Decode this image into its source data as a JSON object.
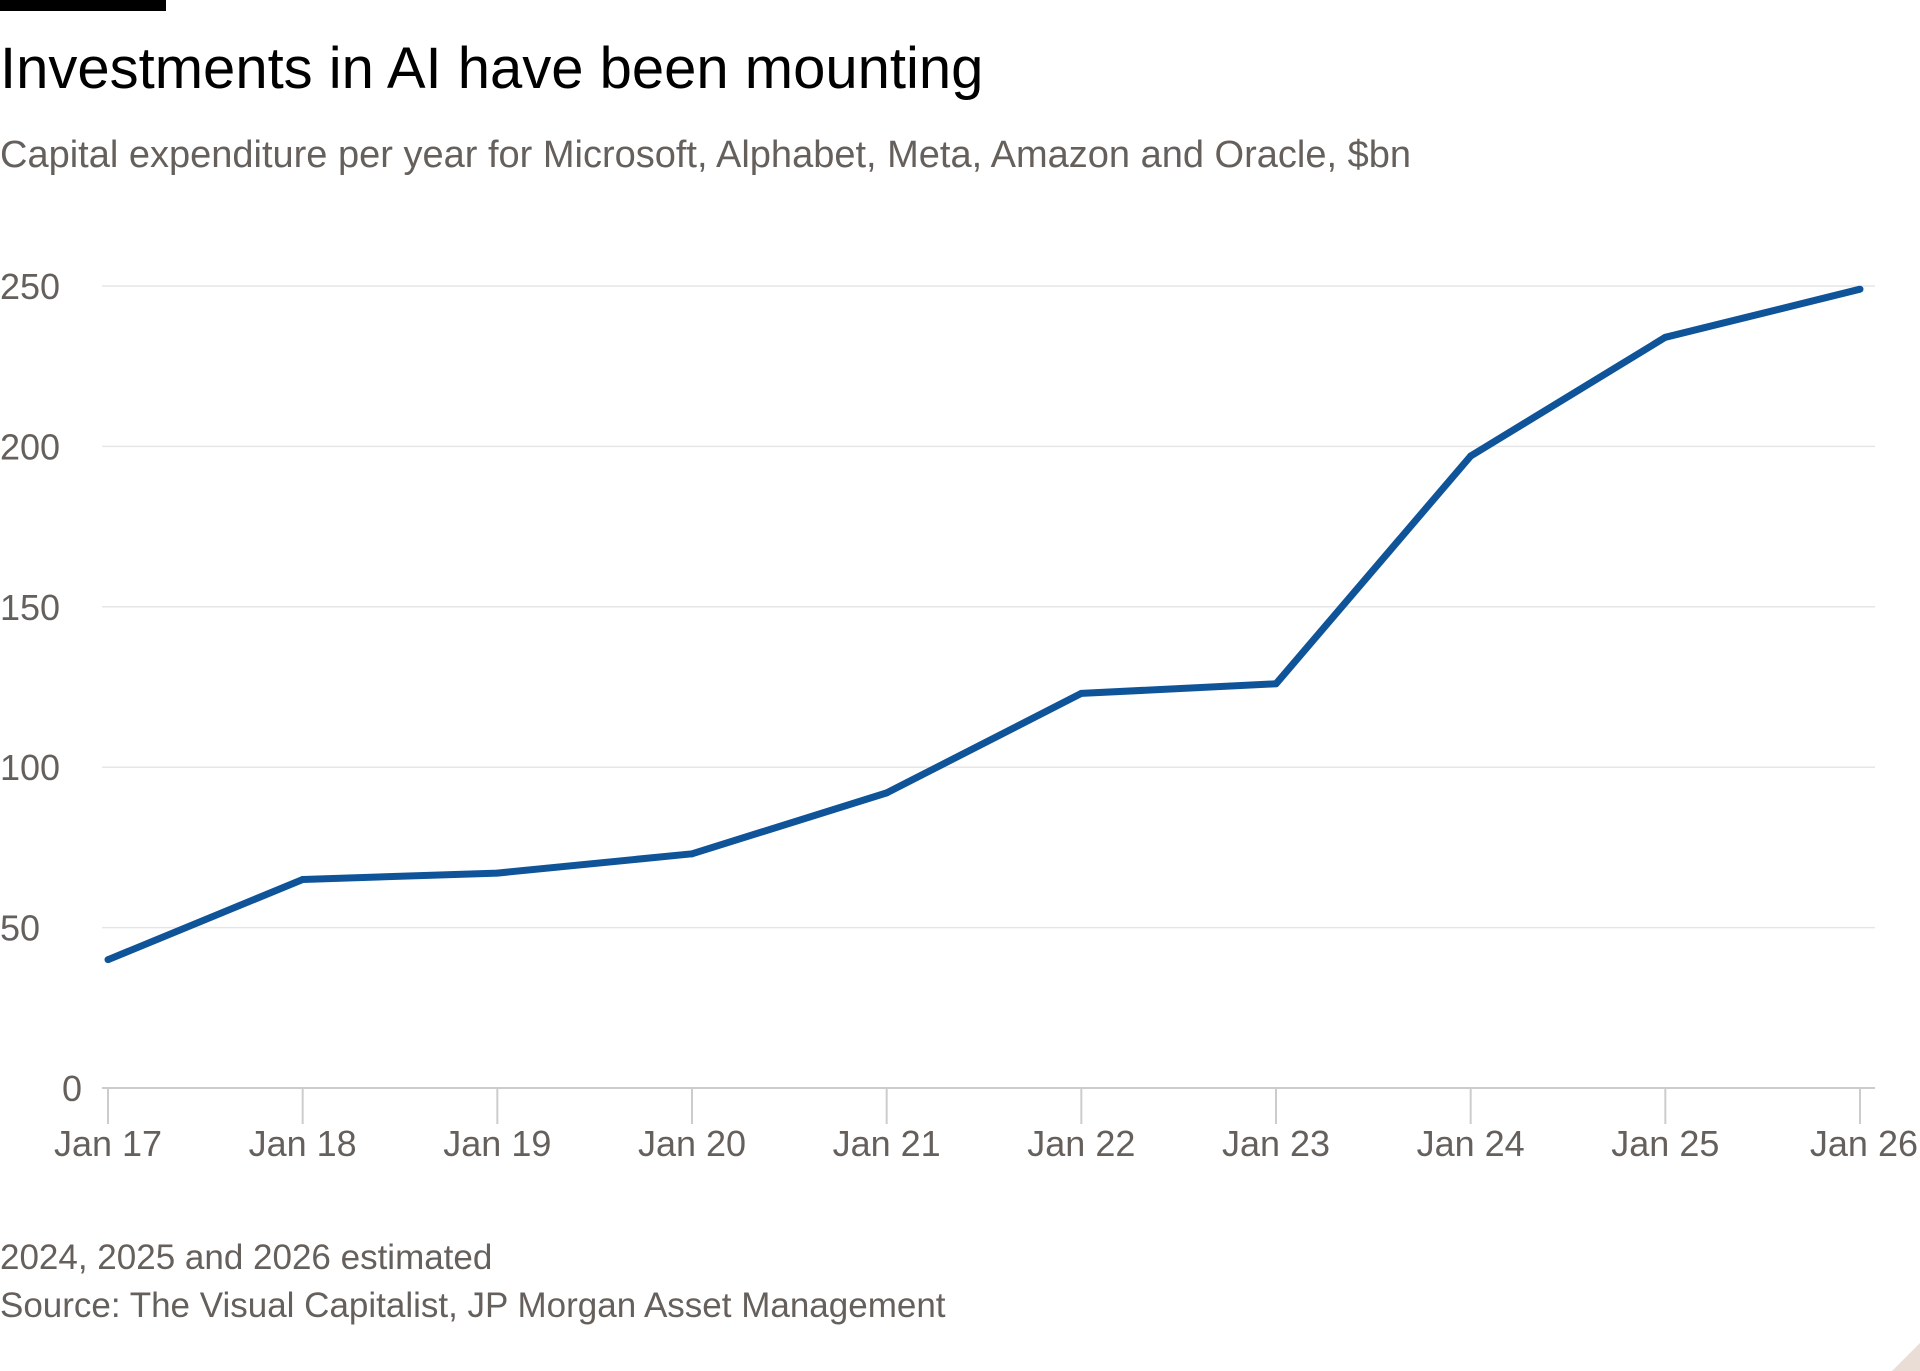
{
  "header": {
    "title": "Investments in AI have been mounting",
    "subtitle": "Capital expenditure per year for Microsoft, Alphabet, Meta, Amazon and Oracle, $bn"
  },
  "footer": {
    "note": "2024, 2025 and 2026 estimated",
    "source": "Source: The Visual Capitalist, JP Morgan Asset Management"
  },
  "colors": {
    "line": "#0f5499",
    "grid": "#e6e6e6",
    "axis": "#cccccc",
    "text_muted": "#66605c",
    "title": "#000000",
    "accent_bar": "#000000"
  },
  "chart_data": {
    "type": "line",
    "title": "Investments in AI have been mounting",
    "subtitle": "Capital expenditure per year for Microsoft, Alphabet, Meta, Amazon and Oracle, $bn",
    "x": [
      "Jan 17",
      "Jan 18",
      "Jan 19",
      "Jan 20",
      "Jan 21",
      "Jan 22",
      "Jan 23",
      "Jan 24",
      "Jan 25",
      "Jan 26"
    ],
    "series": [
      {
        "values": [
          40,
          65,
          67,
          73,
          92,
          123,
          126,
          197,
          234,
          249
        ]
      }
    ],
    "ylim": [
      0,
      250
    ],
    "yticks": [
      0,
      50,
      100,
      150,
      200,
      250
    ],
    "ytick_labels": [
      "0",
      "50",
      "100",
      "150",
      "200",
      "250"
    ],
    "xtick_labels": [
      "Jan 17",
      "Jan 18",
      "Jan 19",
      "Jan 20",
      "Jan 21",
      "Jan 22",
      "Jan 23",
      "Jan 24",
      "Jan 25",
      "Jan 26"
    ],
    "grid": true,
    "legend": "none",
    "xlabel": "",
    "ylabel": ""
  }
}
